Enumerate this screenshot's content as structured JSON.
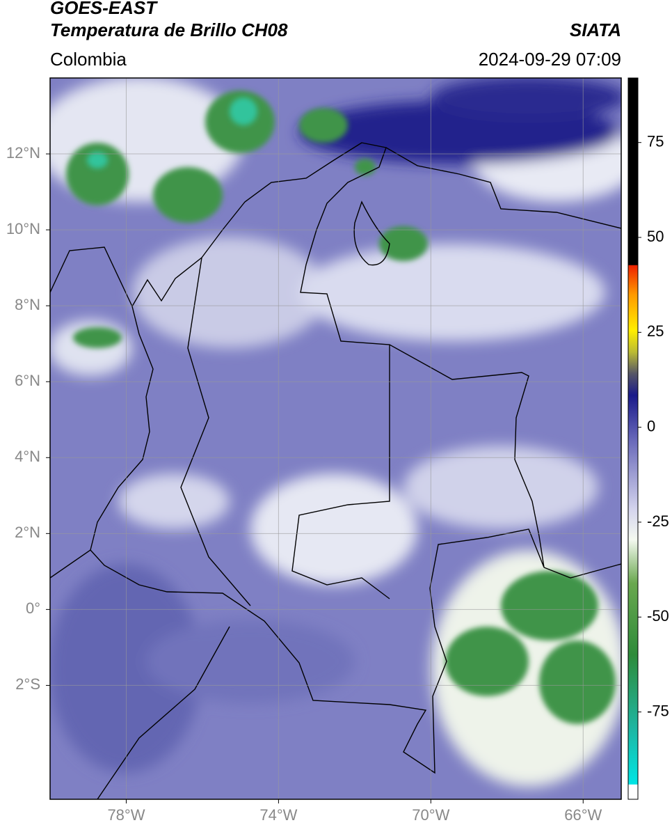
{
  "header": {
    "title_line1": "GOES-EAST",
    "title_line2": "Temperatura de Brillo CH08",
    "source": "SIATA",
    "region": "Colombia",
    "timestamp": "2024-09-29 07:09"
  },
  "map": {
    "xlim": [
      -80,
      -65
    ],
    "ylim": [
      -5,
      14
    ],
    "xticks": [
      {
        "value": -78,
        "label": "78°W"
      },
      {
        "value": -74,
        "label": "74°W"
      },
      {
        "value": -70,
        "label": "70°W"
      },
      {
        "value": -66,
        "label": "66°W"
      }
    ],
    "yticks": [
      {
        "value": 12,
        "label": "12°N"
      },
      {
        "value": 10,
        "label": "10°N"
      },
      {
        "value": 8,
        "label": "8°N"
      },
      {
        "value": 6,
        "label": "6°N"
      },
      {
        "value": 4,
        "label": "4°N"
      },
      {
        "value": 2,
        "label": "2°N"
      },
      {
        "value": 0,
        "label": "0°"
      },
      {
        "value": -2,
        "label": "2°S"
      }
    ],
    "grid": true
  },
  "colorbar": {
    "lim": [
      -98,
      92
    ],
    "ticks": [
      75,
      50,
      25,
      0,
      -25,
      -50,
      -75
    ]
  }
}
